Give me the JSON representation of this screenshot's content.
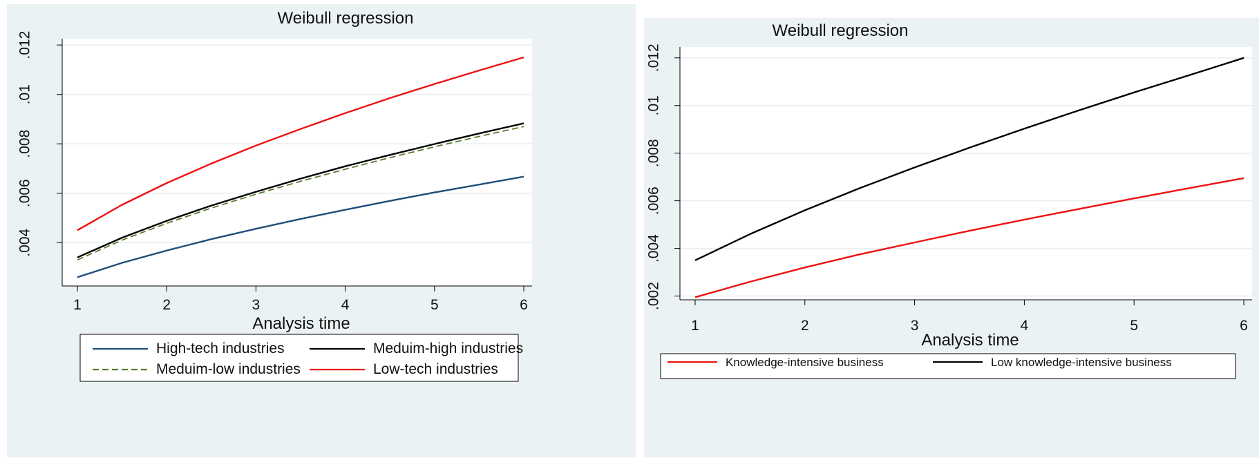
{
  "chart_data": [
    {
      "type": "line",
      "title": "Weibull regression",
      "xlabel": "Analysis time",
      "ylabel": "",
      "xlim": [
        1,
        6
      ],
      "ylim": [
        0.0023,
        0.0122
      ],
      "x_ticks": [
        1,
        2,
        3,
        4,
        5,
        6
      ],
      "x_tick_labels": [
        "1",
        "2",
        "3",
        "4",
        "5",
        "6"
      ],
      "y_ticks": [
        0.002,
        0.004,
        0.006,
        0.008,
        0.01,
        0.012
      ],
      "y_tick_labels": [
        ".002",
        ".004",
        ".006",
        ".008",
        ".01",
        ".012"
      ],
      "grid": true,
      "legend_position": "bottom",
      "x": [
        1,
        1.5,
        2,
        2.5,
        3,
        3.5,
        4,
        4.5,
        5,
        5.5,
        6
      ],
      "series": [
        {
          "name": "High-tech industries",
          "color": "#1f4e79",
          "dash": "solid",
          "values": [
            0.0026,
            0.00318,
            0.00368,
            0.00414,
            0.00456,
            0.00496,
            0.00533,
            0.00569,
            0.00603,
            0.00635,
            0.00667
          ]
        },
        {
          "name": "Meduim-high industries",
          "color": "#000000",
          "dash": "solid",
          "values": [
            0.0034,
            0.0042,
            0.00488,
            0.0055,
            0.00606,
            0.00659,
            0.00709,
            0.00755,
            0.00799,
            0.00842,
            0.00883
          ]
        },
        {
          "name": "Meduim-low industries",
          "color": "#5a7a2e",
          "dash": "dashed",
          "values": [
            0.0033,
            0.0041,
            0.00478,
            0.0054,
            0.00596,
            0.00648,
            0.00697,
            0.00744,
            0.00788,
            0.0083,
            0.0087
          ]
        },
        {
          "name": "Low-tech industries",
          "color": "#ee1111",
          "dash": "solid",
          "values": [
            0.0045,
            0.00553,
            0.00641,
            0.0072,
            0.00793,
            0.0086,
            0.00924,
            0.00985,
            0.01042,
            0.01097,
            0.0115
          ]
        }
      ]
    },
    {
      "type": "line",
      "title": "Weibull regression",
      "xlabel": "Analysis time",
      "ylabel": "",
      "xlim": [
        1,
        6
      ],
      "ylim": [
        0.0019,
        0.0124
      ],
      "x_ticks": [
        1,
        2,
        3,
        4,
        5,
        6
      ],
      "x_tick_labels": [
        "1",
        "2",
        "3",
        "4",
        "5",
        "6"
      ],
      "y_ticks": [
        0.002,
        0.004,
        0.006,
        0.008,
        0.01,
        0.012
      ],
      "y_tick_labels": [
        ".002",
        ".004",
        ".006",
        ".008",
        ".01",
        ".012"
      ],
      "grid": true,
      "legend_position": "bottom",
      "x": [
        1,
        1.5,
        2,
        2.5,
        3,
        3.5,
        4,
        4.5,
        5,
        5.5,
        6
      ],
      "series": [
        {
          "name": "Knowledge-intensive business",
          "color": "#ee1111",
          "dash": "solid",
          "values": [
            0.00195,
            0.0026,
            0.0032,
            0.00375,
            0.00425,
            0.00474,
            0.00521,
            0.00566,
            0.0061,
            0.00653,
            0.00695
          ]
        },
        {
          "name": "Low knowledge-intensive business",
          "color": "#000000",
          "dash": "solid",
          "values": [
            0.0035,
            0.0046,
            0.0056,
            0.00653,
            0.0074,
            0.00823,
            0.00903,
            0.0098,
            0.01055,
            0.01127,
            0.012
          ]
        }
      ]
    }
  ]
}
